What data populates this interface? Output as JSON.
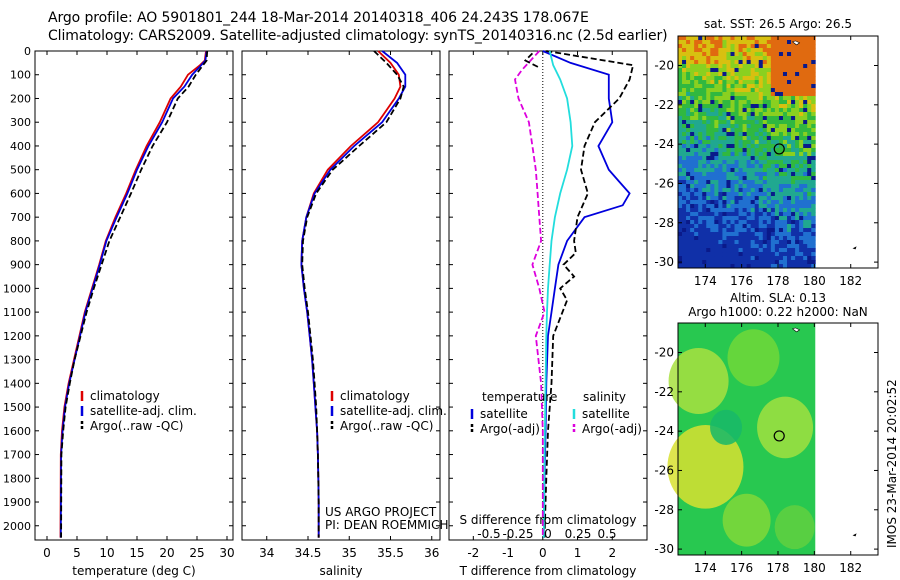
{
  "title_line1": "Argo profile: AO 5901801_244 18-Mar-2014 20140318_406 24.243S 178.067E",
  "title_line2": "Climatology: CARS2009. Satellite-adjusted climatology: synTS_20140316.nc (2.5d earlier)",
  "credit_text": "IMOS 23-Mar-2014 20:02:52",
  "colors": {
    "climatology": "#dd0000",
    "satellite": "#0000dd",
    "argo": "#000000",
    "sat_s": "#22dddd",
    "argo_s": "#dd00dd"
  },
  "chart_data": [
    {
      "type": "line",
      "xlabel": "temperature (deg C)",
      "xlim": [
        -2,
        31
      ],
      "xticks": [
        0,
        5,
        10,
        15,
        20,
        25,
        30
      ],
      "ylim": [
        0,
        2060
      ],
      "yticks": [
        0,
        100,
        200,
        300,
        400,
        500,
        600,
        700,
        800,
        900,
        1000,
        1100,
        1200,
        1300,
        1400,
        1500,
        1600,
        1700,
        1800,
        1900,
        2000
      ],
      "legend": [
        "climatology",
        "satellite-adj. clim.",
        "Argo(..raw -QC)"
      ],
      "series": [
        {
          "name": "climatology",
          "style": "solid",
          "color": "#dd0000",
          "x": [
            26.5,
            26.3,
            25.5,
            23.5,
            22.3,
            20.6,
            18.8,
            16.6,
            14.8,
            13.2,
            11.4,
            9.8,
            8.7,
            7.5,
            6.3,
            5.4,
            4.5,
            3.6,
            2.9,
            2.5,
            2.3,
            2.25
          ],
          "y": [
            0,
            40,
            60,
            100,
            150,
            200,
            300,
            400,
            500,
            600,
            700,
            800,
            900,
            1000,
            1100,
            1200,
            1300,
            1400,
            1500,
            1600,
            1700,
            2050
          ]
        },
        {
          "name": "satellite-adj. clim.",
          "style": "solid",
          "color": "#0000dd",
          "x": [
            26.6,
            26.4,
            25.7,
            24.2,
            22.9,
            21.0,
            19.2,
            16.9,
            15.0,
            13.4,
            11.6,
            9.9,
            8.8,
            7.6,
            6.4,
            5.5,
            4.6,
            3.7,
            3.0,
            2.6,
            2.35,
            2.3
          ],
          "y": [
            0,
            40,
            60,
            100,
            150,
            200,
            300,
            400,
            500,
            600,
            700,
            800,
            900,
            1000,
            1100,
            1200,
            1300,
            1400,
            1500,
            1600,
            1700,
            2050
          ]
        },
        {
          "name": "Argo(..raw -QC)",
          "style": "dashed",
          "color": "#000000",
          "x": [
            26.7,
            26.6,
            26.0,
            24.8,
            23.6,
            21.8,
            20.0,
            17.6,
            15.7,
            14.0,
            12.2,
            10.4,
            9.1,
            7.8,
            6.6,
            5.6,
            4.6,
            3.8,
            3.1,
            2.7,
            2.4,
            2.35
          ],
          "y": [
            0,
            40,
            60,
            100,
            150,
            200,
            300,
            400,
            500,
            600,
            700,
            800,
            900,
            1000,
            1100,
            1200,
            1300,
            1400,
            1500,
            1600,
            1700,
            2050
          ]
        }
      ]
    },
    {
      "type": "line",
      "xlabel": "salinity",
      "xlim": [
        33.7,
        36.1
      ],
      "xticks": [
        34,
        34.5,
        35,
        35.5,
        36
      ],
      "ylim": [
        0,
        2060
      ],
      "legend": [
        "climatology",
        "satellite-adj. clim.",
        "Argo(..raw -QC)"
      ],
      "annotation": [
        "US ARGO PROJECT",
        "PI: DEAN ROEMMICH"
      ],
      "series": [
        {
          "name": "climatology",
          "style": "solid",
          "color": "#dd0000",
          "x": [
            35.35,
            35.5,
            35.6,
            35.62,
            35.55,
            35.35,
            35.02,
            34.74,
            34.57,
            34.48,
            34.43,
            34.42,
            34.45,
            34.49,
            34.52,
            34.55,
            34.57,
            34.59,
            34.61,
            34.62,
            34.63,
            34.63
          ],
          "y": [
            0,
            50,
            100,
            150,
            200,
            300,
            400,
            500,
            600,
            700,
            800,
            900,
            1000,
            1100,
            1200,
            1300,
            1400,
            1500,
            1600,
            1700,
            1900,
            2050
          ]
        },
        {
          "name": "satellite-adj. clim.",
          "style": "solid",
          "color": "#0000dd",
          "x": [
            35.4,
            35.58,
            35.68,
            35.68,
            35.6,
            35.4,
            35.06,
            34.77,
            34.58,
            34.48,
            34.43,
            34.42,
            34.45,
            34.49,
            34.52,
            34.55,
            34.57,
            34.59,
            34.61,
            34.62,
            34.63,
            34.63
          ],
          "y": [
            0,
            50,
            100,
            150,
            200,
            300,
            400,
            500,
            600,
            700,
            800,
            900,
            1000,
            1100,
            1200,
            1300,
            1400,
            1500,
            1600,
            1700,
            1900,
            2050
          ]
        },
        {
          "name": "Argo(..raw -QC)",
          "style": "dashed",
          "color": "#000000",
          "x": [
            35.3,
            35.45,
            35.58,
            35.66,
            35.62,
            35.45,
            35.12,
            34.8,
            34.6,
            34.49,
            34.44,
            34.43,
            34.46,
            34.5,
            34.53,
            34.56,
            34.58,
            34.6,
            34.61,
            34.62,
            34.63,
            34.63
          ],
          "y": [
            0,
            50,
            100,
            150,
            200,
            300,
            400,
            500,
            600,
            700,
            800,
            900,
            1000,
            1100,
            1200,
            1300,
            1400,
            1500,
            1600,
            1700,
            1900,
            2050
          ]
        }
      ]
    },
    {
      "type": "line",
      "xlabel": "T difference from climatology",
      "top_label": "S difference from climatology",
      "xlim": [
        -2.7,
        3
      ],
      "xticks": [
        -2,
        -1,
        0,
        1,
        2
      ],
      "top_xticks": [
        "-0.5",
        "-0.25",
        "0",
        "0.25",
        "0.5"
      ],
      "ylim": [
        0,
        2060
      ],
      "legend_left_title": "temperature",
      "legend_right_title": "salinity",
      "legend": [
        "satellite",
        "Argo(-adj)",
        "satellite",
        "Argo(-adj)"
      ],
      "series": [
        {
          "name": "T satellite",
          "style": "solid",
          "color": "#0000dd",
          "x": [
            0,
            0.8,
            1.9,
            1.9,
            2.0,
            1.6,
            1.9,
            2.2,
            2.5,
            2.3,
            1.2,
            0.7,
            0.45,
            0.35,
            0.25,
            0.15,
            0.1,
            0.08,
            0.05,
            0.03
          ],
          "y": [
            0,
            50,
            100,
            200,
            300,
            400,
            500,
            550,
            600,
            650,
            700,
            800,
            900,
            1000,
            1100,
            1200,
            1400,
            1600,
            1800,
            2050
          ]
        },
        {
          "name": "T Argo(-adj)",
          "style": "dashed",
          "color": "#000000",
          "x": [
            0.1,
            2.6,
            2.5,
            2.2,
            1.5,
            1.2,
            1.1,
            1.3,
            1.0,
            0.9,
            0.95,
            0.6,
            0.9,
            0.5,
            0.7,
            0.3,
            0.25,
            0.15,
            0.1,
            0.05
          ],
          "y": [
            0,
            60,
            120,
            200,
            300,
            400,
            500,
            600,
            700,
            800,
            850,
            900,
            950,
            1000,
            1050,
            1200,
            1400,
            1600,
            1800,
            2050
          ]
        },
        {
          "name": "S satellite",
          "style": "solid",
          "color": "#22dddd",
          "x": [
            0.2,
            0.3,
            0.5,
            0.7,
            0.8,
            0.85,
            0.7,
            0.5,
            0.35,
            0.25,
            0.2,
            0.15,
            0.12,
            0.1,
            0.08,
            0.06,
            0.04,
            0.03
          ],
          "y": [
            0,
            60,
            120,
            200,
            300,
            400,
            500,
            600,
            700,
            800,
            900,
            1000,
            1100,
            1200,
            1400,
            1600,
            1800,
            2050
          ]
        },
        {
          "name": "S Argo(-adj)",
          "style": "dashed",
          "color": "#dd00dd",
          "x": [
            -0.1,
            -0.6,
            -0.8,
            -0.7,
            -0.4,
            -0.3,
            -0.2,
            -0.15,
            -0.1,
            -0.05,
            -0.3,
            -0.1,
            0.05,
            -0.2,
            -0.05,
            0.0,
            0.0,
            0.0
          ],
          "y": [
            0,
            80,
            120,
            200,
            300,
            400,
            500,
            600,
            700,
            800,
            900,
            1000,
            1100,
            1200,
            1400,
            1600,
            1800,
            2050
          ]
        },
        {
          "name": "T Argo(-adj) upper",
          "style": "dashed",
          "color": "#000000",
          "x": [
            -0.3,
            -0.5,
            -0.1
          ],
          "y": [
            10,
            40,
            70
          ]
        }
      ]
    },
    {
      "type": "heatmap",
      "title": "sat. SST: 26.5 Argo: 26.5",
      "xlim": [
        172.5,
        183.5
      ],
      "ylim": [
        -30.3,
        -18.5
      ],
      "xticks": [
        174,
        176,
        178,
        180,
        182
      ],
      "yticks": [
        -20,
        -22,
        -24,
        -26,
        -28,
        -30
      ],
      "marker": {
        "lon": 178.067,
        "lat": -24.243
      }
    },
    {
      "type": "heatmap",
      "title_line1": "Altim. SLA: 0.13",
      "title_line2": "Argo h1000: 0.22 h2000: NaN",
      "xlim": [
        172.5,
        183.5
      ],
      "ylim": [
        -30.3,
        -18.5
      ],
      "xticks": [
        174,
        176,
        178,
        180,
        182
      ],
      "yticks": [
        -20,
        -22,
        -24,
        -26,
        -28,
        -30
      ],
      "marker": {
        "lon": 178.067,
        "lat": -24.243
      }
    }
  ]
}
